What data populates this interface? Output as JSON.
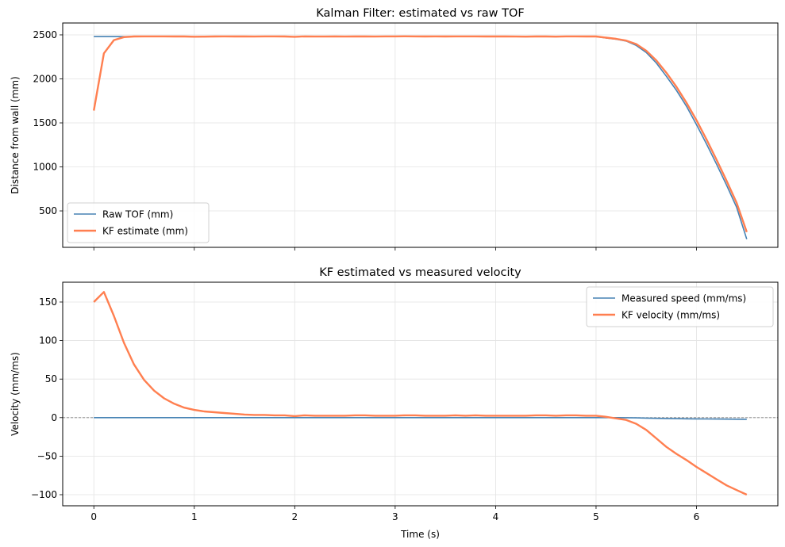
{
  "chart_data": [
    {
      "type": "line",
      "title": "Kalman Filter: estimated vs raw TOF",
      "xlabel": "",
      "ylabel": "Distance from wall (mm)",
      "xlim": [
        -0.31,
        6.81
      ],
      "ylim": [
        86,
        2635
      ],
      "xticks": [
        0,
        1,
        2,
        3,
        4,
        5,
        6
      ],
      "yticks": [
        500,
        1000,
        1500,
        2000,
        2500
      ],
      "show_xticklabels": false,
      "grid": true,
      "legend": "lower-left",
      "x": [
        0,
        0.1,
        0.2,
        0.3,
        0.4,
        0.5,
        0.6,
        0.7,
        0.8,
        0.9,
        1.0,
        1.1,
        1.2,
        1.3,
        1.4,
        1.5,
        1.6,
        1.7,
        1.8,
        1.9,
        2.0,
        2.1,
        2.2,
        2.3,
        2.4,
        2.5,
        2.6,
        2.7,
        2.8,
        2.9,
        3.0,
        3.1,
        3.2,
        3.3,
        3.4,
        3.5,
        3.6,
        3.7,
        3.8,
        3.9,
        4.0,
        4.1,
        4.2,
        4.3,
        4.4,
        4.5,
        4.6,
        4.7,
        4.8,
        4.9,
        5.0,
        5.1,
        5.2,
        5.3,
        5.4,
        5.5,
        5.6,
        5.7,
        5.8,
        5.9,
        6.0,
        6.1,
        6.2,
        6.3,
        6.4,
        6.5
      ],
      "series": [
        {
          "name": "Raw TOF (mm)",
          "color": "#4682b4",
          "width": 1.6,
          "values": [
            2480,
            2480,
            2480,
            2480,
            2481,
            2482,
            2482,
            2482,
            2481,
            2481,
            2478,
            2479,
            2481,
            2482,
            2481,
            2481,
            2480,
            2482,
            2482,
            2481,
            2477,
            2482,
            2480,
            2480,
            2481,
            2480,
            2482,
            2481,
            2480,
            2482,
            2482,
            2483,
            2482,
            2481,
            2482,
            2481,
            2482,
            2482,
            2482,
            2481,
            2481,
            2481,
            2480,
            2479,
            2481,
            2481,
            2479,
            2482,
            2482,
            2481,
            2480,
            2465,
            2450,
            2430,
            2380,
            2300,
            2180,
            2030,
            1870,
            1690,
            1480,
            1260,
            1030,
            790,
            540,
            180
          ]
        },
        {
          "name": "KF estimate (mm)",
          "color": "#ff7f50",
          "width": 2.4,
          "values": [
            1640,
            2290,
            2440,
            2475,
            2482,
            2483,
            2483,
            2483,
            2482,
            2482,
            2479,
            2480,
            2482,
            2483,
            2482,
            2482,
            2481,
            2483,
            2483,
            2482,
            2478,
            2483,
            2481,
            2481,
            2482,
            2481,
            2483,
            2482,
            2481,
            2483,
            2483,
            2484,
            2483,
            2482,
            2483,
            2482,
            2483,
            2483,
            2483,
            2482,
            2482,
            2482,
            2481,
            2480,
            2482,
            2482,
            2480,
            2483,
            2483,
            2482,
            2482,
            2468,
            2455,
            2435,
            2395,
            2320,
            2210,
            2070,
            1910,
            1730,
            1530,
            1310,
            1080,
            840,
            590,
            260
          ]
        }
      ],
      "legend_entries": [
        "Raw TOF (mm)",
        "KF estimate (mm)"
      ]
    },
    {
      "type": "line",
      "title": "KF estimated vs measured velocity",
      "xlabel": "Time (s)",
      "ylabel": "Velocity (mm/ms)",
      "xlim": [
        -0.31,
        6.81
      ],
      "ylim": [
        -114.4,
        175.7
      ],
      "xticks": [
        0,
        1,
        2,
        3,
        4,
        5,
        6
      ],
      "yticks": [
        -100,
        -50,
        0,
        50,
        100,
        150
      ],
      "show_xticklabels": true,
      "grid": true,
      "legend": "upper-right",
      "hline": 0,
      "x": [
        0,
        0.1,
        0.2,
        0.3,
        0.4,
        0.5,
        0.6,
        0.7,
        0.8,
        0.9,
        1.0,
        1.1,
        1.2,
        1.3,
        1.4,
        1.5,
        1.6,
        1.7,
        1.8,
        1.9,
        2.0,
        2.1,
        2.2,
        2.3,
        2.4,
        2.5,
        2.6,
        2.7,
        2.8,
        2.9,
        3.0,
        3.1,
        3.2,
        3.3,
        3.4,
        3.5,
        3.6,
        3.7,
        3.8,
        3.9,
        4.0,
        4.1,
        4.2,
        4.3,
        4.4,
        4.5,
        4.6,
        4.7,
        4.8,
        4.9,
        5.0,
        5.1,
        5.2,
        5.3,
        5.4,
        5.5,
        5.6,
        5.7,
        5.8,
        5.9,
        6.0,
        6.1,
        6.2,
        6.3,
        6.4,
        6.5
      ],
      "series": [
        {
          "name": "Measured speed (mm/ms)",
          "color": "#4682b4",
          "width": 1.6,
          "values": [
            0,
            0,
            0,
            0,
            0,
            0,
            0,
            0,
            0,
            0,
            0,
            0,
            0,
            0,
            0,
            0,
            0,
            0,
            0,
            0,
            0,
            0,
            0,
            0,
            0,
            0,
            0,
            0,
            0,
            0,
            0,
            0,
            0,
            0,
            0,
            0,
            0,
            0,
            0,
            0,
            0,
            0,
            0,
            0,
            0,
            0,
            0,
            0,
            0,
            0,
            0,
            0,
            0,
            -0.1,
            -0.3,
            -0.6,
            -0.9,
            -1.1,
            -1.3,
            -1.5,
            -1.7,
            -1.8,
            -1.9,
            -2.0,
            -2.1,
            -2.2
          ]
        },
        {
          "name": "KF velocity (mm/ms)",
          "color": "#ff7f50",
          "width": 2.4,
          "values": [
            150,
            163,
            132,
            97,
            69,
            49,
            35,
            25,
            18,
            13,
            10,
            8,
            7,
            6,
            5,
            4,
            3.5,
            3.5,
            3,
            3,
            2,
            3,
            2.5,
            2.5,
            2.5,
            2.5,
            3,
            3,
            2.5,
            2.5,
            2.5,
            3,
            3,
            2.5,
            2.5,
            2.5,
            3,
            2.5,
            3,
            2.5,
            2.5,
            2.5,
            2.5,
            2.5,
            3,
            3,
            2.5,
            3,
            3,
            2.5,
            2.5,
            1,
            -1,
            -3,
            -8,
            -16,
            -27,
            -38,
            -47,
            -55,
            -64,
            -72,
            -80,
            -88,
            -94,
            -100
          ]
        }
      ],
      "legend_entries": [
        "Measured speed (mm/ms)",
        "KF velocity (mm/ms)"
      ]
    }
  ]
}
